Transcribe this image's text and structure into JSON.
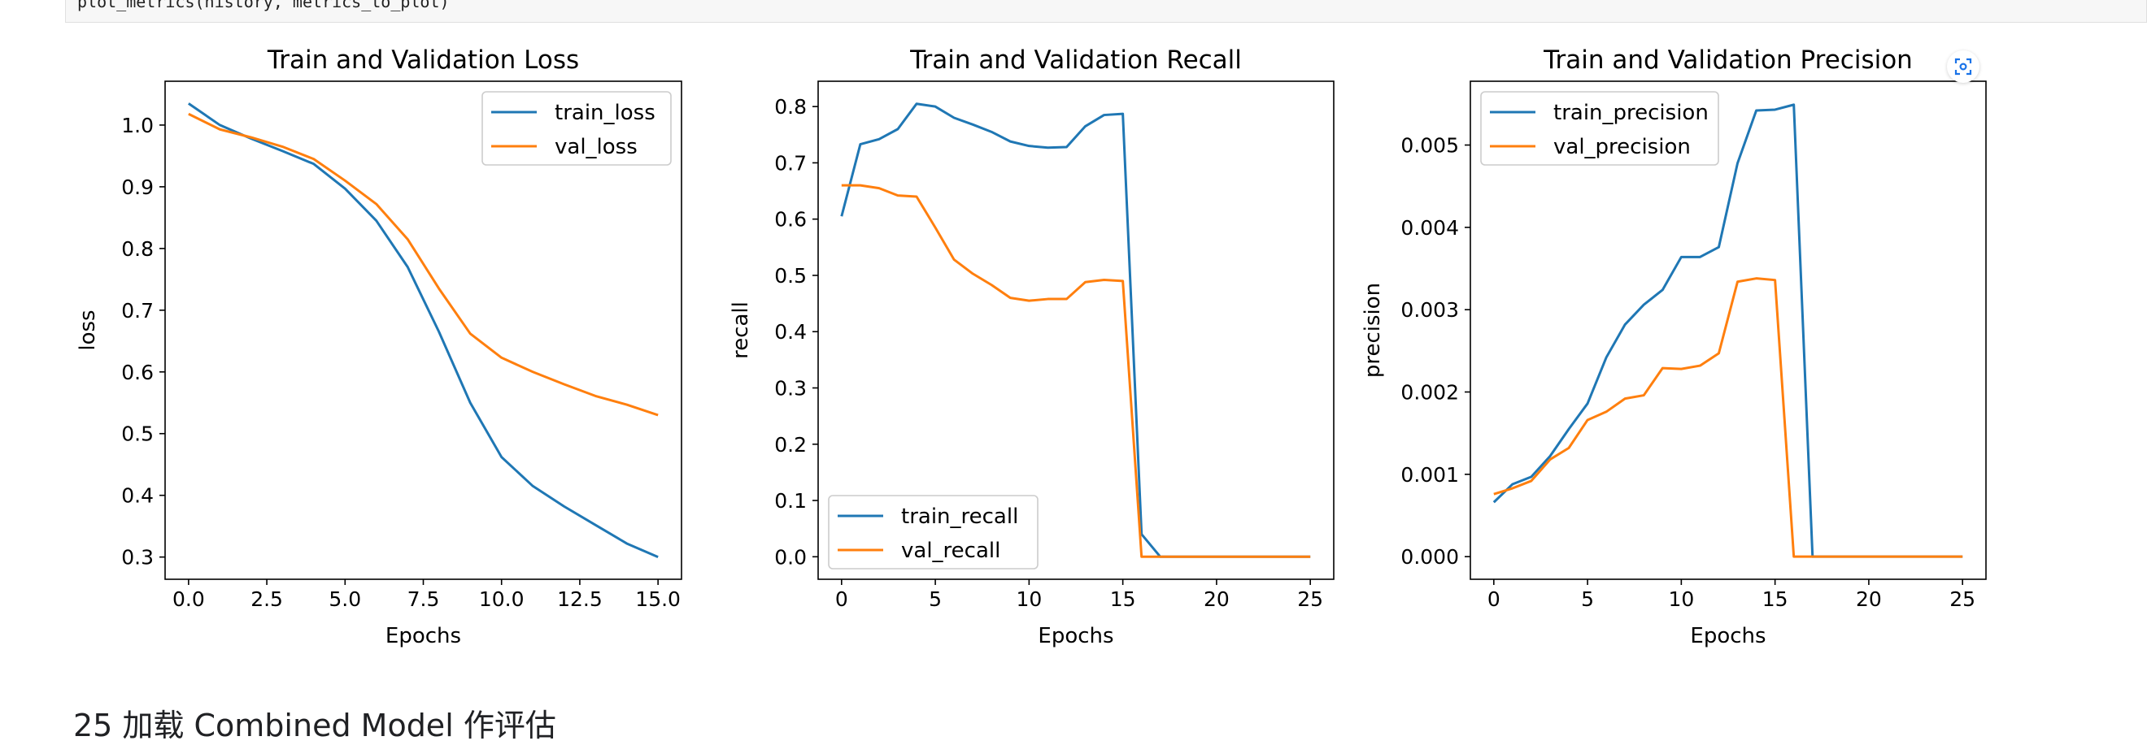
{
  "code": {
    "line": "plot_metrics(history, metrics_to_plot)"
  },
  "next_heading": "25 加载 Combined Model 作评估",
  "colors": {
    "train": "#1f77b4",
    "val": "#ff7f0e"
  },
  "chart_data": [
    {
      "type": "line",
      "title": "Train and Validation Loss",
      "xlabel": "Epochs",
      "ylabel": "loss",
      "xlim": [
        -0.75,
        15.75
      ],
      "ylim": [
        0.264,
        1.071
      ],
      "xticks": [
        0.0,
        2.5,
        5.0,
        7.5,
        10.0,
        12.5,
        15.0
      ],
      "xtick_labels": [
        "0.0",
        "2.5",
        "5.0",
        "7.5",
        "10.0",
        "12.5",
        "15.0"
      ],
      "yticks": [
        0.3,
        0.4,
        0.5,
        0.6,
        0.7,
        0.8,
        0.9,
        1.0
      ],
      "ytick_labels": [
        "0.3",
        "0.4",
        "0.5",
        "0.6",
        "0.7",
        "0.8",
        "0.9",
        "1.0"
      ],
      "grid": false,
      "legend": "upper right",
      "x": [
        0,
        1,
        2,
        3,
        4,
        5,
        6,
        7,
        8,
        9,
        10,
        11,
        12,
        13,
        14,
        15
      ],
      "series": [
        {
          "name": "train_loss",
          "color": "#1f77b4",
          "values": [
            1.035,
            1.0,
            0.978,
            0.958,
            0.937,
            0.897,
            0.845,
            0.77,
            0.665,
            0.55,
            0.462,
            0.415,
            0.382,
            0.352,
            0.322,
            0.3
          ]
        },
        {
          "name": "val_loss",
          "color": "#ff7f0e",
          "values": [
            1.018,
            0.993,
            0.98,
            0.965,
            0.945,
            0.91,
            0.872,
            0.815,
            0.735,
            0.662,
            0.623,
            0.6,
            0.58,
            0.561,
            0.547,
            0.53
          ]
        }
      ]
    },
    {
      "type": "line",
      "title": "Train and Validation Recall",
      "xlabel": "Epochs",
      "ylabel": "recall",
      "xlim": [
        -1.25,
        26.25
      ],
      "ylim": [
        -0.04,
        0.845
      ],
      "xticks": [
        0,
        5,
        10,
        15,
        20,
        25
      ],
      "xtick_labels": [
        "0",
        "5",
        "10",
        "15",
        "20",
        "25"
      ],
      "yticks": [
        0.0,
        0.1,
        0.2,
        0.3,
        0.4,
        0.5,
        0.6,
        0.7,
        0.8
      ],
      "ytick_labels": [
        "0.0",
        "0.1",
        "0.2",
        "0.3",
        "0.4",
        "0.5",
        "0.6",
        "0.7",
        "0.8"
      ],
      "grid": false,
      "legend": "lower left",
      "x": [
        0,
        1,
        2,
        3,
        4,
        5,
        6,
        7,
        8,
        9,
        10,
        11,
        12,
        13,
        14,
        15,
        16,
        17,
        18,
        19,
        20,
        21,
        22,
        23,
        24,
        25
      ],
      "series": [
        {
          "name": "train_recall",
          "color": "#1f77b4",
          "values": [
            0.605,
            0.733,
            0.742,
            0.76,
            0.805,
            0.8,
            0.78,
            0.768,
            0.755,
            0.738,
            0.73,
            0.727,
            0.728,
            0.765,
            0.785,
            0.787,
            0.04,
            0.0,
            0.0,
            0.0,
            0.0,
            0.0,
            0.0,
            0.0,
            0.0,
            0.0
          ]
        },
        {
          "name": "val_recall",
          "color": "#ff7f0e",
          "values": [
            0.66,
            0.66,
            0.655,
            0.642,
            0.64,
            0.585,
            0.528,
            0.503,
            0.483,
            0.46,
            0.455,
            0.458,
            0.458,
            0.488,
            0.492,
            0.49,
            0.0,
            0.0,
            0.0,
            0.0,
            0.0,
            0.0,
            0.0,
            0.0,
            0.0,
            0.0
          ]
        }
      ]
    },
    {
      "type": "line",
      "title": "Train and Validation Precision",
      "xlabel": "Epochs",
      "ylabel": "precision",
      "xlim": [
        -1.25,
        26.25
      ],
      "ylim": [
        -0.000275,
        0.005775
      ],
      "xticks": [
        0,
        5,
        10,
        15,
        20,
        25
      ],
      "xtick_labels": [
        "0",
        "5",
        "10",
        "15",
        "20",
        "25"
      ],
      "yticks": [
        0.0,
        0.001,
        0.002,
        0.003,
        0.004,
        0.005
      ],
      "ytick_labels": [
        "0.000",
        "0.001",
        "0.002",
        "0.003",
        "0.004",
        "0.005"
      ],
      "grid": false,
      "legend": "upper left",
      "x": [
        0,
        1,
        2,
        3,
        4,
        5,
        6,
        7,
        8,
        9,
        10,
        11,
        12,
        13,
        14,
        15,
        16,
        17,
        18,
        19,
        20,
        21,
        22,
        23,
        24,
        25
      ],
      "series": [
        {
          "name": "train_precision",
          "color": "#1f77b4",
          "values": [
            0.00066,
            0.00088,
            0.00097,
            0.00122,
            0.00155,
            0.00186,
            0.00242,
            0.00282,
            0.00306,
            0.00324,
            0.00364,
            0.00364,
            0.00376,
            0.00478,
            0.00542,
            0.00543,
            0.00549,
            0.0,
            0.0,
            0.0,
            0.0,
            0.0,
            0.0,
            0.0,
            0.0,
            0.0
          ]
        },
        {
          "name": "val_precision",
          "color": "#ff7f0e",
          "values": [
            0.00076,
            0.00083,
            0.00092,
            0.00118,
            0.00132,
            0.00166,
            0.00176,
            0.00192,
            0.00196,
            0.00229,
            0.00228,
            0.00232,
            0.00247,
            0.00334,
            0.00338,
            0.00336,
            0.0,
            0.0,
            0.0,
            0.0,
            0.0,
            0.0,
            0.0,
            0.0,
            0.0,
            0.0
          ]
        }
      ]
    }
  ]
}
